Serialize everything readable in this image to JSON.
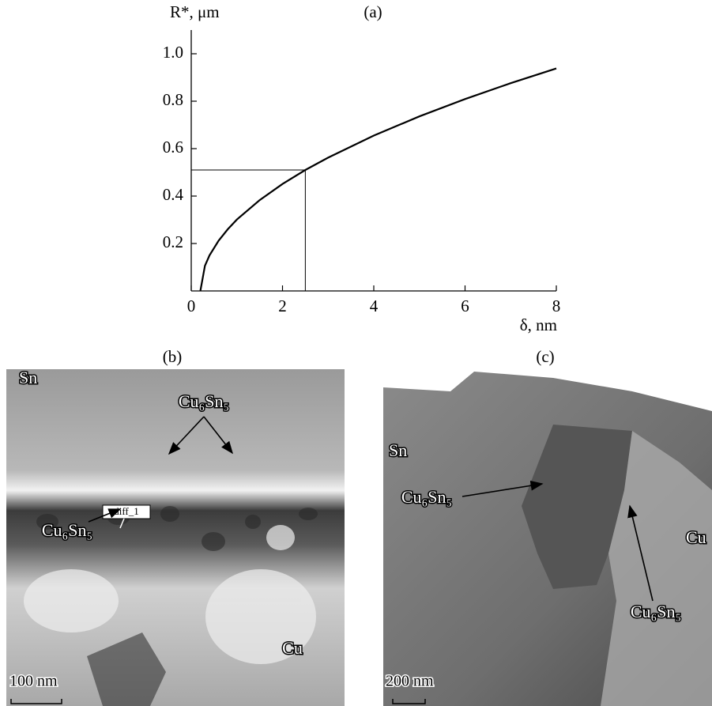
{
  "chart_data": {
    "type": "line",
    "title": "(a)",
    "y_label": "R*, μm",
    "x_label": "δ, nm",
    "x": [
      0.2,
      0.3,
      0.4,
      0.6,
      0.8,
      1.0,
      1.5,
      2.0,
      2.5,
      3,
      4,
      5,
      6,
      7,
      8
    ],
    "series": [
      {
        "color": "#000000",
        "values": [
          0,
          0.106,
          0.15,
          0.212,
          0.26,
          0.301,
          0.383,
          0.451,
          0.51,
          0.562,
          0.655,
          0.736,
          0.809,
          0.876,
          0.938
        ]
      }
    ],
    "xlim": [
      0,
      8
    ],
    "ylim": [
      0,
      1.1
    ],
    "xticks": [
      0,
      2,
      4,
      6,
      8
    ],
    "yticks": [
      0.2,
      0.4,
      0.6,
      0.8,
      {
        "value": 1,
        "label": "1.0"
      }
    ],
    "marker": {
      "x": 2.5,
      "y": 0.51
    }
  },
  "panels": [
    {
      "label": "(b)",
      "annotations": [
        "Sn",
        "Cu₆Sn₅",
        "diff_1",
        "Cu₆Sn₅",
        "Cu"
      ],
      "scale_bar": "100 nm"
    },
    {
      "label": "(c)",
      "annotations": [
        "Sn",
        "Cu₆Sn₅",
        "Cu",
        "Cu₆Sn₅"
      ],
      "scale_bar": "200 nm"
    }
  ]
}
